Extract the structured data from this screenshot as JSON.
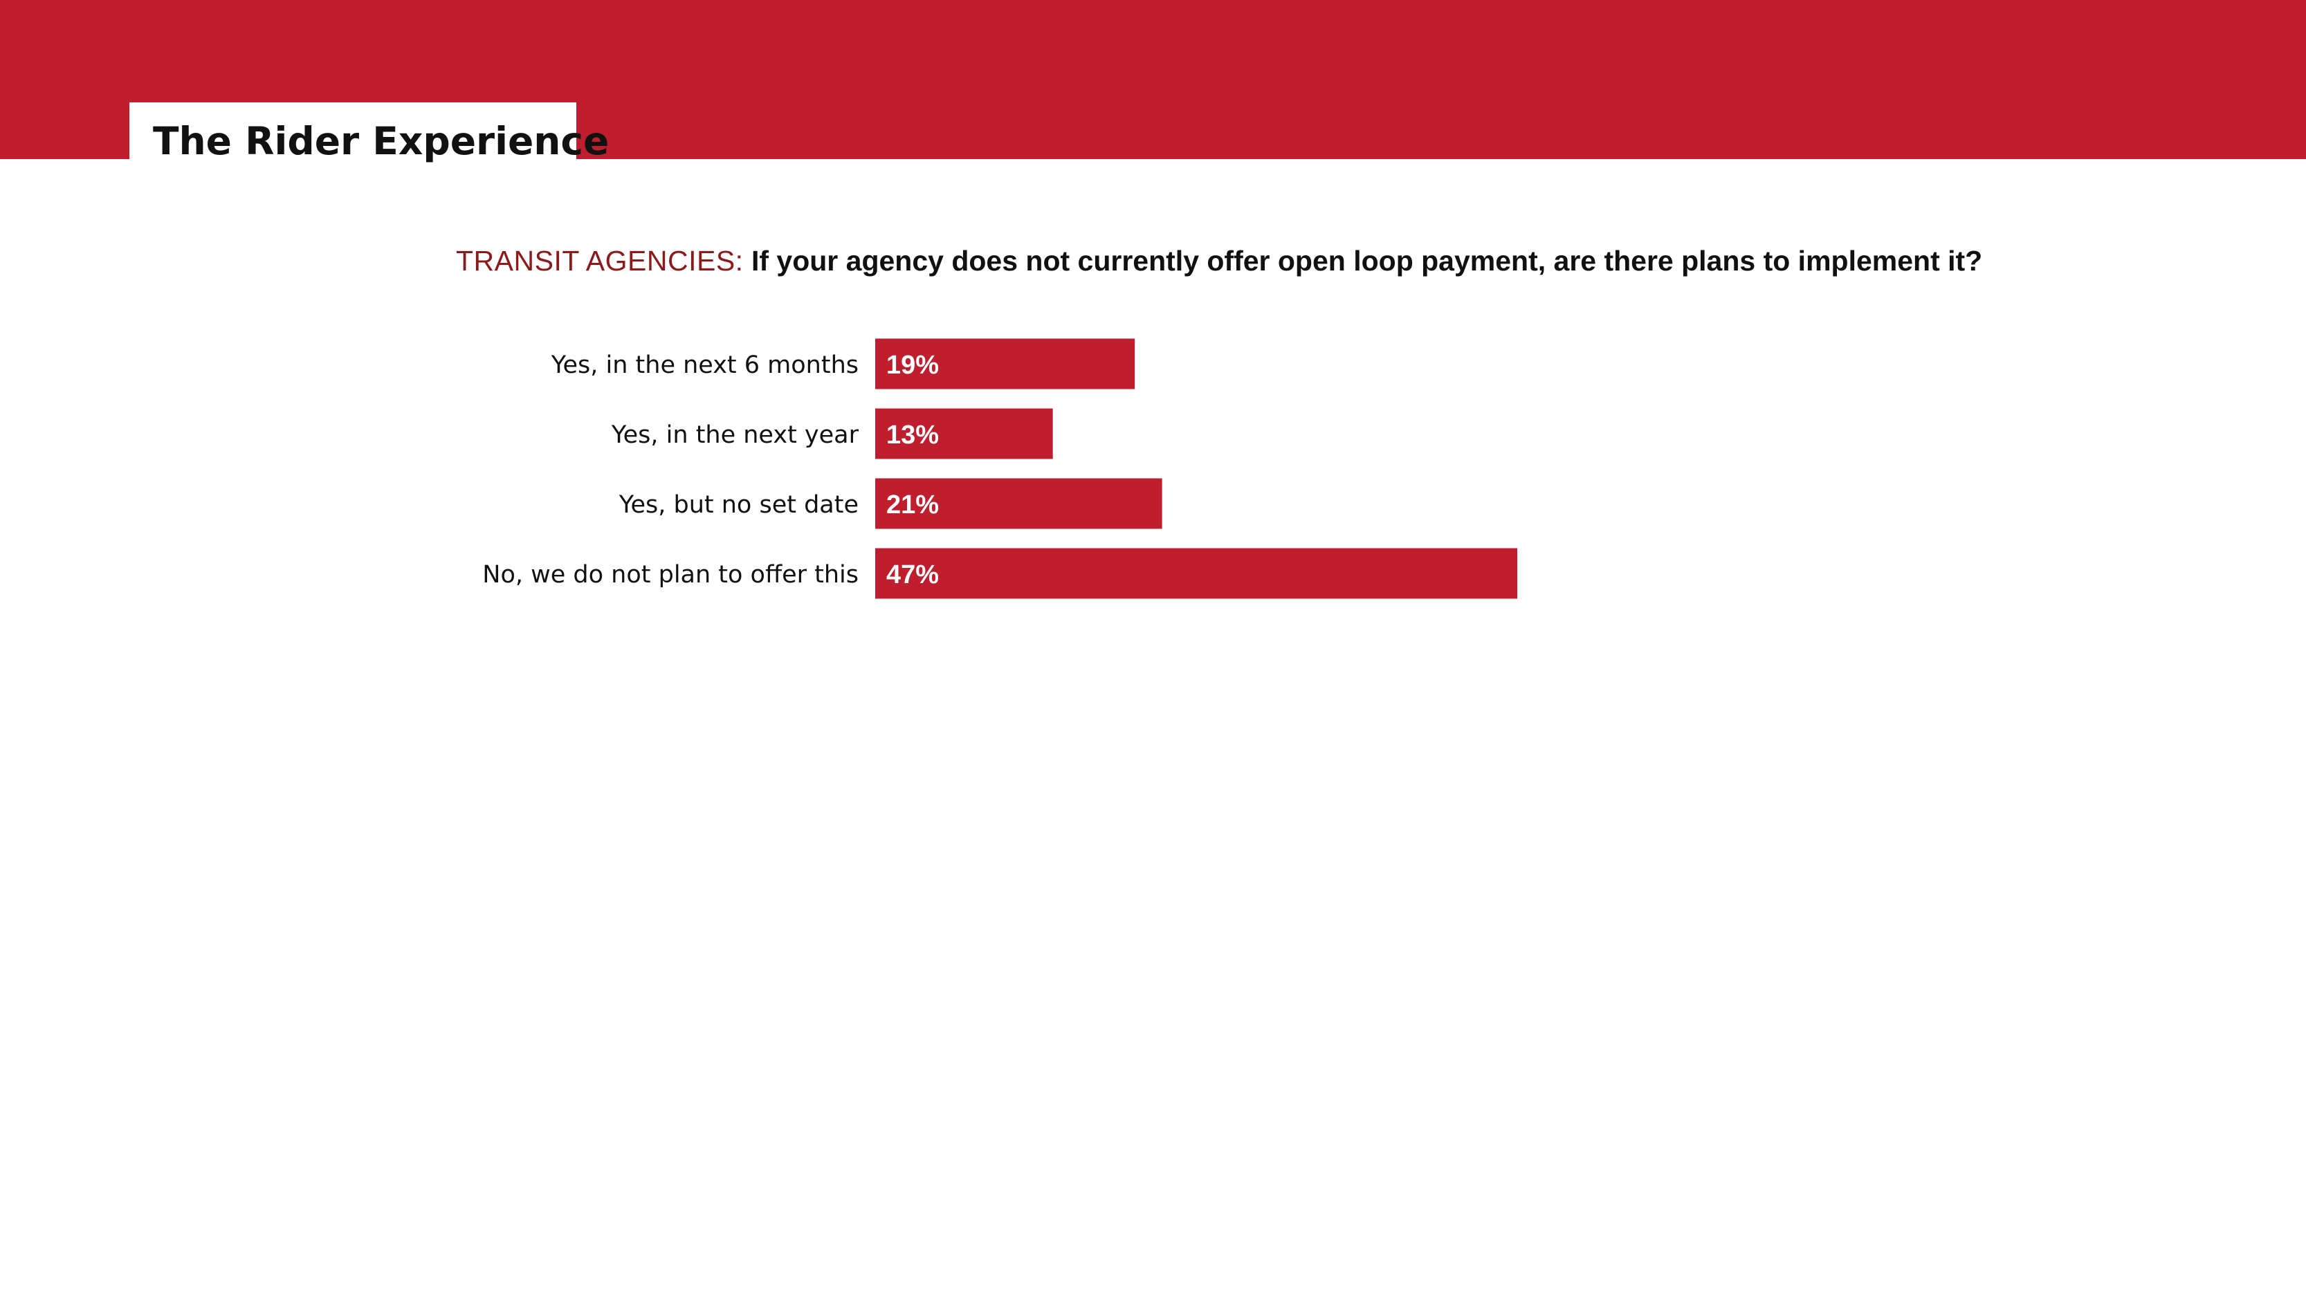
{
  "header": {
    "title": "The Rider Experience",
    "band_color": "#be1e2d"
  },
  "question": {
    "prefix": "TRANSIT AGENCIES:",
    "text": "If your agency does not currently offer open loop payment, are there plans to implement it?"
  },
  "chart_data": {
    "type": "bar",
    "orientation": "horizontal",
    "categories": [
      "Yes, in the next 6 months",
      "Yes, in the next year",
      "Yes, but no set date",
      "No, we do not plan to offer this"
    ],
    "values": [
      19,
      13,
      21,
      47
    ],
    "value_labels": [
      "19%",
      "13%",
      "21%",
      "47%"
    ],
    "unit": "%",
    "xlim": [
      0,
      47
    ],
    "bar_color": "#be1e2d",
    "grid": false,
    "legend": "none"
  }
}
